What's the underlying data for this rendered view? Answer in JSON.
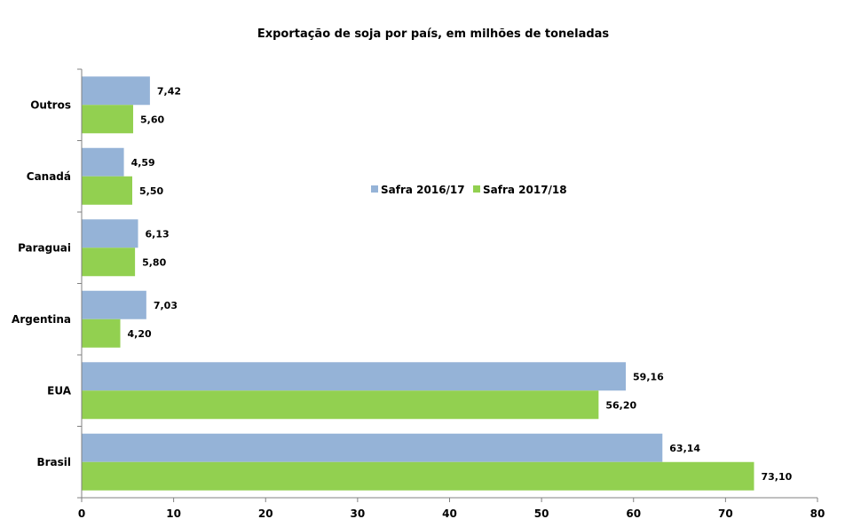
{
  "chart_data": {
    "type": "bar",
    "orientation": "horizontal",
    "title": "Exportação de soja por país, em milhões de toneladas",
    "xlabel": "",
    "ylabel": "",
    "categories": [
      "Brasil",
      "EUA",
      "Argentina",
      "Paraguai",
      "Canadá",
      "Outros"
    ],
    "series": [
      {
        "name": "Safra 2016/17",
        "color": "#95b3d7",
        "values": [
          63.14,
          59.16,
          7.03,
          6.13,
          4.59,
          7.42
        ],
        "labels": [
          "63,14",
          "59,16",
          "7,03",
          "6,13",
          "4,59",
          "7,42"
        ]
      },
      {
        "name": "Safra 2017/18",
        "color": "#92d050",
        "values": [
          73.1,
          56.2,
          4.2,
          5.8,
          5.5,
          5.6
        ],
        "labels": [
          "73,10",
          "56,20",
          "4,20",
          "5,80",
          "5,50",
          "5,60"
        ]
      }
    ],
    "xlim": [
      0,
      80
    ],
    "ticks": [
      "0",
      "10",
      "20",
      "30",
      "40",
      "50",
      "60",
      "70",
      "80"
    ],
    "grid": false,
    "legend_position": "center-right"
  }
}
